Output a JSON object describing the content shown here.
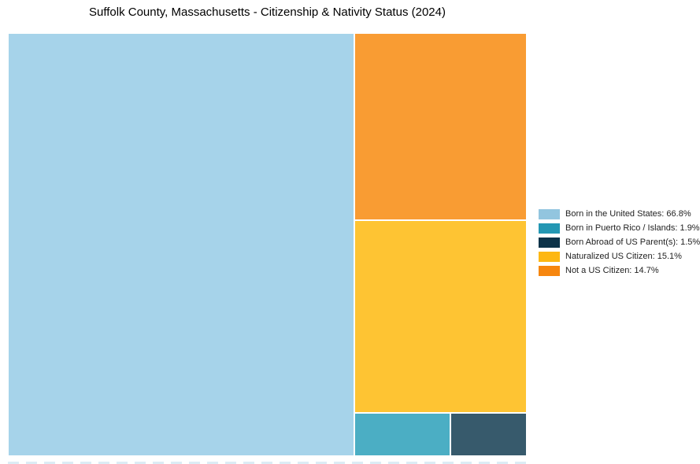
{
  "chart_data": {
    "type": "treemap",
    "title": "Suffolk County, Massachusetts - Citizenship & Nativity Status (2024)",
    "unit": "%",
    "legend_position": "right",
    "total": 100.0,
    "series": [
      {
        "id": "born_us",
        "name": "Born in the United States",
        "value": 66.8,
        "label": "Born in the United States: 66.8%",
        "legend_color": "#92c5df",
        "block_color": "#a6d3ea"
      },
      {
        "id": "born_pr",
        "name": "Born in Puerto Rico / Islands",
        "value": 1.9,
        "label": "Born in Puerto Rico / Islands: 1.9%",
        "legend_color": "#2497b3",
        "block_color": "#4baec4"
      },
      {
        "id": "born_abroad",
        "name": "Born Abroad of US Parent(s)",
        "value": 1.5,
        "label": "Born Abroad of US Parent(s): 1.5%",
        "legend_color": "#0d3349",
        "block_color": "#375a6c"
      },
      {
        "id": "naturalized",
        "name": "Naturalized US Citizen",
        "value": 15.1,
        "label": "Naturalized US Citizen: 15.1%",
        "legend_color": "#fdb713",
        "block_color": "#fec433"
      },
      {
        "id": "not_citizen",
        "name": "Not a US Citizen",
        "value": 14.7,
        "label": "Not a US Citizen: 14.7%",
        "legend_color": "#f6860f",
        "block_color": "#f99c33"
      }
    ]
  }
}
